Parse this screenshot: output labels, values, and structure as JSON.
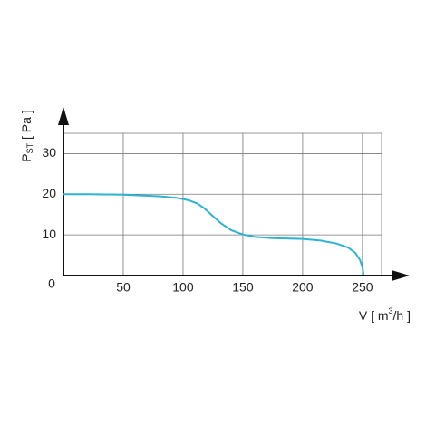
{
  "chart_data": {
    "type": "line",
    "ylabel": [
      "P",
      "ST",
      " [ Pa ]"
    ],
    "xlabel": [
      "V [ m",
      "3",
      "/h ]"
    ],
    "x": [
      0,
      20,
      50,
      80,
      95,
      105,
      112,
      118,
      125,
      132,
      140,
      150,
      160,
      175,
      200,
      215,
      228,
      238,
      244,
      248,
      250,
      251
    ],
    "series": [
      {
        "name": "PST",
        "color": "#2bb3d1",
        "values": [
          20,
          20,
          19.9,
          19.5,
          19.1,
          18.5,
          17.7,
          16.5,
          14.6,
          12.8,
          11.2,
          10.1,
          9.5,
          9.2,
          9,
          8.6,
          7.9,
          6.9,
          5.6,
          3.8,
          2,
          0.2
        ]
      }
    ],
    "xlim": [
      0,
      266
    ],
    "ylim": [
      0,
      35
    ],
    "xticks": [
      0,
      50,
      100,
      150,
      200,
      250
    ],
    "yticks": [
      10,
      20,
      30
    ],
    "grid": true
  }
}
